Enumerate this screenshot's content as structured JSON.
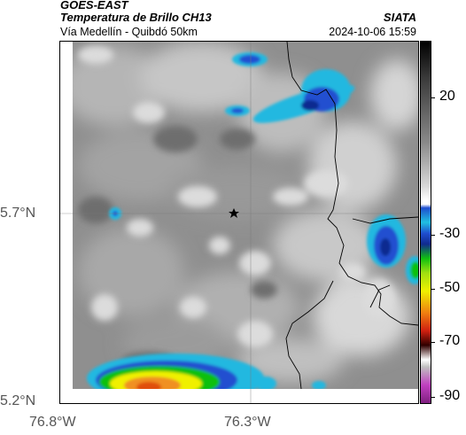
{
  "header": {
    "title": "GOES-EAST",
    "subtitle": "Temperatura de Brillo CH13",
    "region": "Vía Medellín - Quibdó 50km",
    "organization": "SIATA",
    "datetime": "2024-10-06 15:59"
  },
  "map": {
    "y_ticks": [
      "5.7°N",
      "5.2°N"
    ],
    "x_ticks": [
      "76.8°W",
      "76.3°W"
    ],
    "marker": "star-marker"
  },
  "colorbar": {
    "labels": [
      "20",
      "-30",
      "-50",
      "-70",
      "-90"
    ]
  },
  "colors": {
    "cold_blue": "#1f4fd0",
    "cyan": "#20c0e0",
    "green": "#10c010",
    "yellow": "#f0f000",
    "orange": "#f08010",
    "red": "#d02010",
    "magenta": "#c040c0"
  }
}
